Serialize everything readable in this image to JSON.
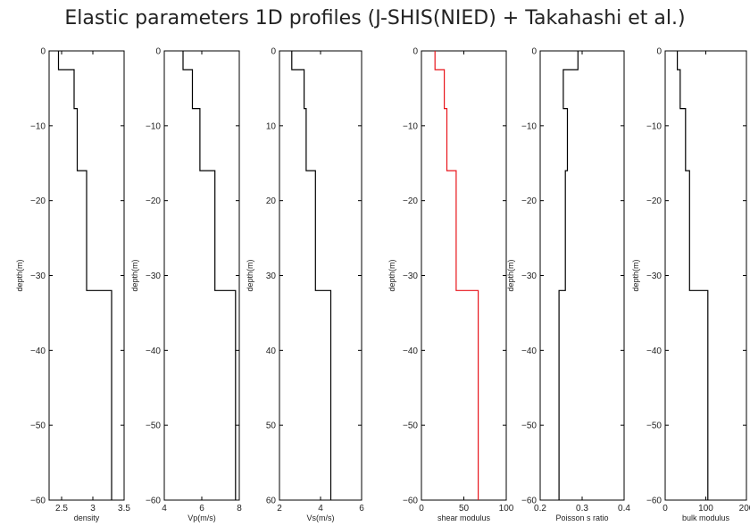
{
  "figure": {
    "title": "Elastic parameters 1D profiles (J-SHIS(NIED) + Takahashi et al.)"
  },
  "chart_data": [
    {
      "type": "line",
      "xlabel": "density",
      "ylabel": "depth(m)",
      "xlim": [
        2.3,
        3.5
      ],
      "ylim": [
        -60,
        0
      ],
      "xticks": [
        2.5,
        3,
        3.5
      ],
      "yticks": [
        0,
        -10,
        -20,
        -30,
        -40,
        -50,
        -60
      ],
      "ytick_labels": [
        "0",
        "−10",
        "−20",
        "−30",
        "−40",
        "−50",
        "−60"
      ],
      "color": "#000000",
      "series": [
        {
          "x": [
            2.45,
            2.45,
            2.7,
            2.7,
            2.75,
            2.75,
            2.9,
            2.9,
            3.3,
            3.3
          ],
          "y": [
            0,
            -2.5,
            -2.5,
            -7.7,
            -7.7,
            -16,
            -16,
            -32,
            -32,
            -60
          ]
        }
      ]
    },
    {
      "type": "line",
      "xlabel": "Vp(m/s)",
      "ylabel": "depth(m)",
      "xlim": [
        4,
        8
      ],
      "ylim": [
        -60,
        0
      ],
      "xticks": [
        4,
        6,
        8
      ],
      "yticks": [
        0,
        -10,
        -20,
        -30,
        -40,
        -50,
        -60
      ],
      "ytick_labels": [
        "0",
        "−10",
        "−20",
        "−30",
        "−40",
        "−50",
        "−60"
      ],
      "color": "#000000",
      "series": [
        {
          "x": [
            5,
            5,
            5.5,
            5.5,
            5.9,
            5.9,
            6.7,
            6.7,
            7.8,
            7.8
          ],
          "y": [
            0,
            -2.5,
            -2.5,
            -7.7,
            -7.7,
            -16,
            -16,
            -32,
            -32,
            -60
          ]
        }
      ]
    },
    {
      "type": "line",
      "xlabel": "Vs(m/s)",
      "ylabel": "depth(m)",
      "xlim": [
        2,
        6
      ],
      "ylim": [
        0,
        60
      ],
      "yreverse": true,
      "xticks": [
        2,
        4,
        6
      ],
      "yticks": [
        0,
        10,
        20,
        30,
        40,
        50,
        60
      ],
      "ytick_labels": [
        "0",
        "10",
        "20",
        "30",
        "40",
        "50",
        "60"
      ],
      "color": "#000000",
      "series": [
        {
          "x": [
            2.6,
            2.6,
            3.2,
            3.2,
            3.3,
            3.3,
            3.75,
            3.75,
            4.5,
            4.5
          ],
          "y": [
            0,
            2.5,
            2.5,
            7.7,
            7.7,
            16,
            16,
            32,
            32,
            60
          ]
        }
      ]
    },
    {
      "type": "line",
      "xlabel": "shear modulus",
      "ylabel": "depth(m)",
      "xlim": [
        0,
        100
      ],
      "ylim": [
        -60,
        0
      ],
      "xticks": [
        0,
        50,
        100
      ],
      "yticks": [
        0,
        -10,
        -20,
        -30,
        -40,
        -50,
        -60
      ],
      "ytick_labels": [
        "0",
        "−10",
        "−20",
        "−30",
        "−40",
        "−50",
        "−60"
      ],
      "color": "#e8141b",
      "series": [
        {
          "x": [
            16,
            16,
            27,
            27,
            30,
            30,
            41,
            41,
            67,
            67
          ],
          "y": [
            0,
            -2.5,
            -2.5,
            -7.7,
            -7.7,
            -16,
            -16,
            -32,
            -32,
            -60
          ]
        }
      ]
    },
    {
      "type": "line",
      "xlabel": "Poisson s ratio",
      "ylabel": "depth(m)",
      "xlim": [
        0.2,
        0.4
      ],
      "ylim": [
        -60,
        0
      ],
      "xticks": [
        0.2,
        0.3,
        0.4
      ],
      "yticks": [
        0,
        -10,
        -20,
        -30,
        -40,
        -50,
        -60
      ],
      "ytick_labels": [
        "0",
        "−10",
        "−20",
        "−30",
        "−40",
        "−50",
        "−60"
      ],
      "color": "#000000",
      "series": [
        {
          "x": [
            0.29,
            0.29,
            0.255,
            0.255,
            0.265,
            0.265,
            0.26,
            0.26,
            0.245,
            0.245
          ],
          "y": [
            0,
            -2.5,
            -2.5,
            -7.7,
            -7.7,
            -16,
            -16,
            -32,
            -32,
            -60
          ]
        }
      ]
    },
    {
      "type": "line",
      "xlabel": "bulk modulus",
      "ylabel": "depth(m)",
      "xlim": [
        0,
        200
      ],
      "ylim": [
        -60,
        0
      ],
      "xticks": [
        0,
        100,
        200
      ],
      "yticks": [
        0,
        -10,
        -20,
        -30,
        -40,
        -50,
        -60
      ],
      "ytick_labels": [
        "0",
        "−10",
        "−20",
        "−30",
        "−40",
        "−50",
        "−60"
      ],
      "color": "#000000",
      "series": [
        {
          "x": [
            30,
            30,
            37,
            37,
            50,
            50,
            60,
            60,
            105,
            105
          ],
          "y": [
            0,
            -2.5,
            -2.5,
            -7.7,
            -7.7,
            -16,
            -16,
            -32,
            -32,
            -60
          ]
        }
      ]
    }
  ]
}
